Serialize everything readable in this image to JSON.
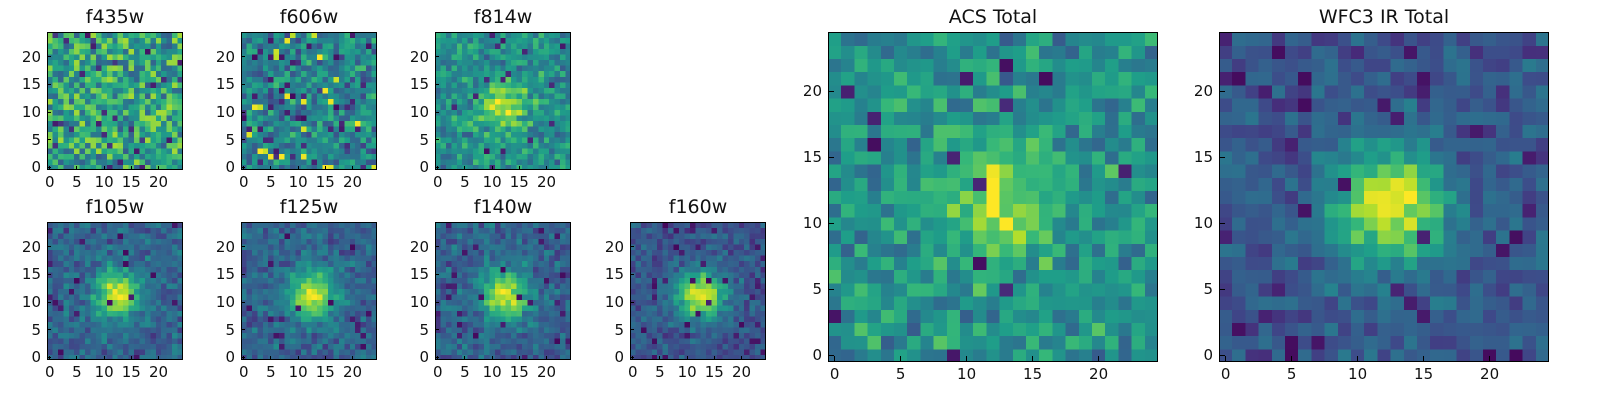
{
  "chart_data": [
    {
      "id": "f435w",
      "type": "heatmap",
      "title": "f435w",
      "size": 25,
      "xticks": [
        0,
        5,
        10,
        15,
        20
      ],
      "yticks": [
        0,
        5,
        10,
        15,
        20
      ],
      "colormap": "viridis",
      "pattern": "noise-bright",
      "seed": 11
    },
    {
      "id": "f606w",
      "type": "heatmap",
      "title": "f606w",
      "size": 25,
      "xticks": [
        0,
        5,
        10,
        15,
        20
      ],
      "yticks": [
        0,
        5,
        10,
        15,
        20
      ],
      "colormap": "viridis",
      "pattern": "noise",
      "seed": 23
    },
    {
      "id": "f814w",
      "type": "heatmap",
      "title": "f814w",
      "size": 25,
      "xticks": [
        0,
        5,
        10,
        15,
        20
      ],
      "yticks": [
        0,
        5,
        10,
        15,
        20
      ],
      "colormap": "viridis",
      "pattern": "weak-source",
      "seed": 37
    },
    {
      "id": "f105w",
      "type": "heatmap",
      "title": "f105w",
      "size": 25,
      "xticks": [
        0,
        5,
        10,
        15,
        20
      ],
      "yticks": [
        0,
        5,
        10,
        15,
        20
      ],
      "colormap": "viridis",
      "pattern": "source",
      "seed": 41
    },
    {
      "id": "f125w",
      "type": "heatmap",
      "title": "f125w",
      "size": 25,
      "xticks": [
        0,
        5,
        10,
        15,
        20
      ],
      "yticks": [
        0,
        5,
        10,
        15,
        20
      ],
      "colormap": "viridis",
      "pattern": "source",
      "seed": 53
    },
    {
      "id": "f140w",
      "type": "heatmap",
      "title": "f140w",
      "size": 25,
      "xticks": [
        0,
        5,
        10,
        15,
        20
      ],
      "yticks": [
        0,
        5,
        10,
        15,
        20
      ],
      "colormap": "viridis",
      "pattern": "source",
      "seed": 67
    },
    {
      "id": "f160w",
      "type": "heatmap",
      "title": "f160w",
      "size": 25,
      "xticks": [
        0,
        5,
        10,
        15,
        20
      ],
      "yticks": [
        0,
        5,
        10,
        15,
        20
      ],
      "colormap": "viridis",
      "pattern": "source-dark",
      "seed": 79
    },
    {
      "id": "acs-total",
      "type": "heatmap",
      "title": "ACS Total",
      "size": 25,
      "xticks": [
        0,
        5,
        10,
        15,
        20
      ],
      "yticks": [
        0,
        5,
        10,
        15,
        20
      ],
      "colormap": "viridis",
      "pattern": "weak-source",
      "seed": 97
    },
    {
      "id": "wfc3-ir-total",
      "type": "heatmap",
      "title": "WFC3 IR Total",
      "size": 25,
      "xticks": [
        0,
        5,
        10,
        15,
        20
      ],
      "yticks": [
        0,
        5,
        10,
        15,
        20
      ],
      "colormap": "viridis",
      "pattern": "source-dark",
      "seed": 113
    }
  ]
}
